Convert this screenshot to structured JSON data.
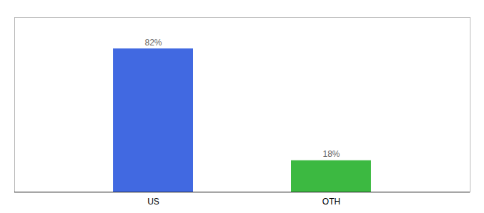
{
  "chart_data": {
    "type": "bar",
    "categories": [
      "US",
      "OTH"
    ],
    "values": [
      82,
      18
    ],
    "value_labels": [
      "82%",
      "18%"
    ],
    "colors": [
      "#4169E1",
      "#3CB941"
    ],
    "ylim": [
      0,
      100
    ],
    "data_labels": true,
    "tick_labels": "x"
  }
}
